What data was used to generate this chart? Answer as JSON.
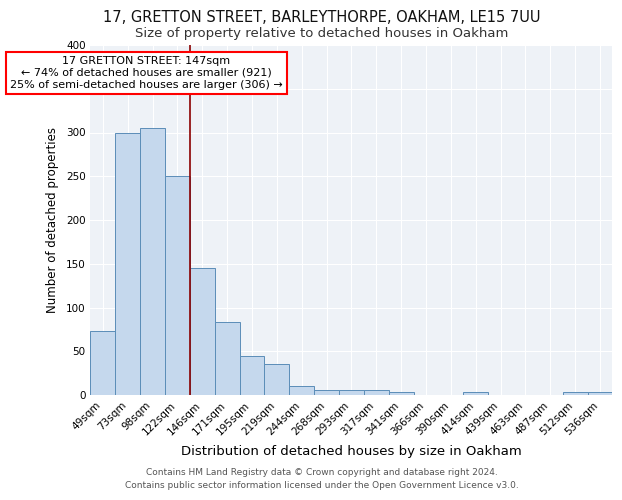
{
  "title1": "17, GRETTON STREET, BARLEYTHORPE, OAKHAM, LE15 7UU",
  "title2": "Size of property relative to detached houses in Oakham",
  "xlabel": "Distribution of detached houses by size in Oakham",
  "ylabel": "Number of detached properties",
  "categories": [
    "49sqm",
    "73sqm",
    "98sqm",
    "122sqm",
    "146sqm",
    "171sqm",
    "195sqm",
    "219sqm",
    "244sqm",
    "268sqm",
    "293sqm",
    "317sqm",
    "341sqm",
    "366sqm",
    "390sqm",
    "414sqm",
    "439sqm",
    "463sqm",
    "487sqm",
    "512sqm",
    "536sqm"
  ],
  "values": [
    73,
    300,
    305,
    250,
    145,
    83,
    45,
    35,
    10,
    6,
    6,
    6,
    3,
    0,
    0,
    3,
    0,
    0,
    0,
    3,
    3
  ],
  "bar_color": "#c5d8ed",
  "bar_edge_color": "#5b8db8",
  "highlight_line_color": "#8b0000",
  "annotation_line1": "17 GRETTON STREET: 147sqm",
  "annotation_line2": "← 74% of detached houses are smaller (921)",
  "annotation_line3": "25% of semi-detached houses are larger (306) →",
  "annotation_box_color": "white",
  "annotation_box_edge_color": "red",
  "ylim": [
    0,
    400
  ],
  "yticks": [
    0,
    50,
    100,
    150,
    200,
    250,
    300,
    350,
    400
  ],
  "background_color": "#eef2f7",
  "grid_color": "#ffffff",
  "footer": "Contains HM Land Registry data © Crown copyright and database right 2024.\nContains public sector information licensed under the Open Government Licence v3.0.",
  "title1_fontsize": 10.5,
  "title2_fontsize": 9.5,
  "xlabel_fontsize": 9.5,
  "ylabel_fontsize": 8.5,
  "tick_fontsize": 7.5,
  "annotation_fontsize": 8,
  "footer_fontsize": 6.5
}
